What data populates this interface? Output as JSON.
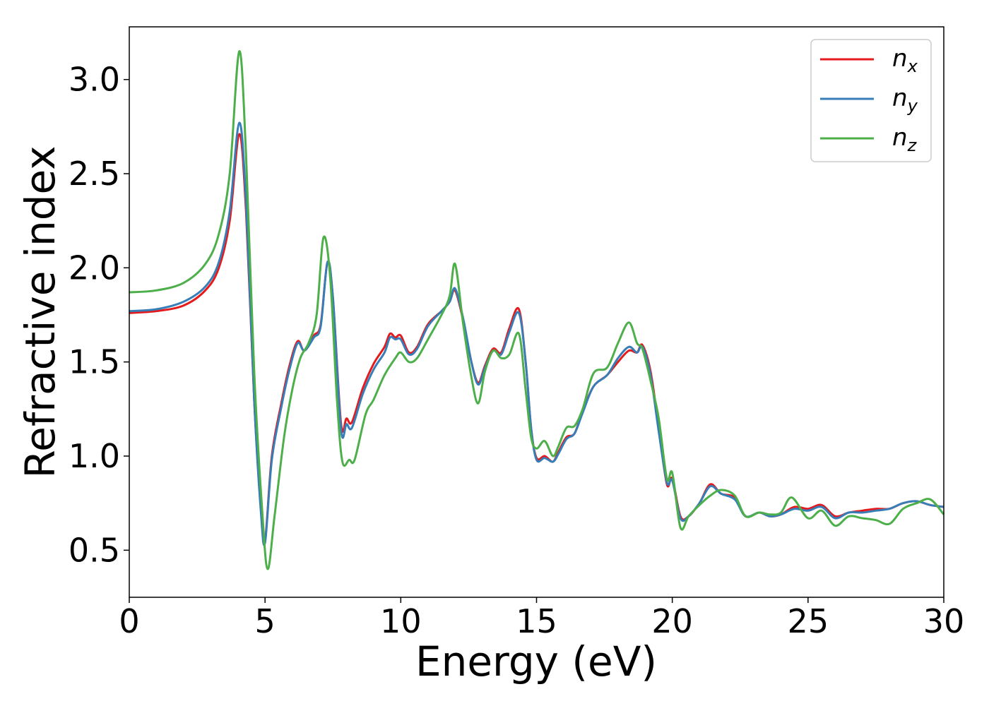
{
  "chart_data": {
    "type": "line",
    "xlabel": "Energy (eV)",
    "ylabel": "Refractive index",
    "xlim": [
      0,
      30
    ],
    "ylim": [
      0.25,
      3.28
    ],
    "xticks": [
      "0",
      "5",
      "10",
      "15",
      "20",
      "25",
      "30"
    ],
    "yticks": [
      "0.5",
      "1.0",
      "1.5",
      "2.0",
      "2.5",
      "3.0"
    ],
    "grid": false,
    "legend_position": "top-right",
    "series": [
      {
        "name": "n",
        "sub": "x",
        "color": "#e41a1c",
        "points": [
          [
            0,
            1.76
          ],
          [
            1,
            1.77
          ],
          [
            2,
            1.8
          ],
          [
            2.8,
            1.88
          ],
          [
            3.3,
            2.0
          ],
          [
            3.7,
            2.25
          ],
          [
            4.05,
            2.71
          ],
          [
            4.3,
            2.3
          ],
          [
            4.6,
            1.3
          ],
          [
            4.85,
            0.72
          ],
          [
            5.0,
            0.55
          ],
          [
            5.25,
            1.0
          ],
          [
            5.6,
            1.28
          ],
          [
            5.9,
            1.48
          ],
          [
            6.2,
            1.61
          ],
          [
            6.45,
            1.56
          ],
          [
            6.8,
            1.64
          ],
          [
            7.05,
            1.7
          ],
          [
            7.3,
            2.03
          ],
          [
            7.5,
            1.84
          ],
          [
            7.8,
            1.17
          ],
          [
            8.0,
            1.2
          ],
          [
            8.2,
            1.18
          ],
          [
            8.6,
            1.36
          ],
          [
            9.0,
            1.49
          ],
          [
            9.4,
            1.58
          ],
          [
            9.6,
            1.65
          ],
          [
            9.8,
            1.63
          ],
          [
            10.0,
            1.64
          ],
          [
            10.3,
            1.55
          ],
          [
            10.6,
            1.58
          ],
          [
            11.0,
            1.7
          ],
          [
            11.5,
            1.77
          ],
          [
            11.8,
            1.82
          ],
          [
            12.0,
            1.88
          ],
          [
            12.3,
            1.72
          ],
          [
            12.6,
            1.5
          ],
          [
            12.85,
            1.39
          ],
          [
            13.1,
            1.48
          ],
          [
            13.4,
            1.57
          ],
          [
            13.7,
            1.55
          ],
          [
            14.0,
            1.68
          ],
          [
            14.35,
            1.78
          ],
          [
            14.6,
            1.5
          ],
          [
            14.8,
            1.15
          ],
          [
            15.0,
            0.99
          ],
          [
            15.3,
            1.0
          ],
          [
            15.6,
            0.97
          ],
          [
            15.8,
            1.02
          ],
          [
            16.1,
            1.1
          ],
          [
            16.4,
            1.12
          ],
          [
            16.7,
            1.24
          ],
          [
            17.1,
            1.37
          ],
          [
            17.6,
            1.43
          ],
          [
            18.0,
            1.5
          ],
          [
            18.4,
            1.56
          ],
          [
            18.7,
            1.55
          ],
          [
            18.9,
            1.59
          ],
          [
            19.2,
            1.45
          ],
          [
            19.5,
            1.15
          ],
          [
            19.8,
            0.85
          ],
          [
            20.0,
            0.88
          ],
          [
            20.3,
            0.68
          ],
          [
            20.6,
            0.68
          ],
          [
            21.0,
            0.75
          ],
          [
            21.4,
            0.85
          ],
          [
            21.8,
            0.8
          ],
          [
            22.3,
            0.78
          ],
          [
            22.7,
            0.68
          ],
          [
            23.2,
            0.7
          ],
          [
            23.6,
            0.68
          ],
          [
            24.0,
            0.69
          ],
          [
            24.5,
            0.73
          ],
          [
            25.0,
            0.72
          ],
          [
            25.5,
            0.74
          ],
          [
            26.0,
            0.68
          ],
          [
            26.5,
            0.7
          ],
          [
            27.0,
            0.71
          ],
          [
            27.5,
            0.72
          ],
          [
            28.0,
            0.72
          ],
          [
            28.5,
            0.75
          ],
          [
            29.0,
            0.76
          ],
          [
            29.5,
            0.74
          ],
          [
            30.0,
            0.73
          ]
        ]
      },
      {
        "name": "n",
        "sub": "y",
        "color": "#377eb8",
        "points": [
          [
            0,
            1.77
          ],
          [
            1,
            1.78
          ],
          [
            2,
            1.82
          ],
          [
            2.8,
            1.9
          ],
          [
            3.3,
            2.03
          ],
          [
            3.7,
            2.3
          ],
          [
            4.05,
            2.77
          ],
          [
            4.3,
            2.35
          ],
          [
            4.6,
            1.3
          ],
          [
            4.85,
            0.7
          ],
          [
            5.0,
            0.54
          ],
          [
            5.25,
            0.98
          ],
          [
            5.6,
            1.26
          ],
          [
            5.9,
            1.46
          ],
          [
            6.2,
            1.6
          ],
          [
            6.45,
            1.56
          ],
          [
            6.8,
            1.63
          ],
          [
            7.05,
            1.69
          ],
          [
            7.3,
            2.03
          ],
          [
            7.5,
            1.84
          ],
          [
            7.8,
            1.14
          ],
          [
            8.0,
            1.17
          ],
          [
            8.2,
            1.15
          ],
          [
            8.6,
            1.33
          ],
          [
            9.0,
            1.46
          ],
          [
            9.4,
            1.55
          ],
          [
            9.6,
            1.63
          ],
          [
            9.8,
            1.62
          ],
          [
            10.0,
            1.62
          ],
          [
            10.3,
            1.54
          ],
          [
            10.6,
            1.57
          ],
          [
            11.0,
            1.69
          ],
          [
            11.5,
            1.77
          ],
          [
            11.8,
            1.82
          ],
          [
            12.0,
            1.89
          ],
          [
            12.3,
            1.73
          ],
          [
            12.6,
            1.5
          ],
          [
            12.85,
            1.38
          ],
          [
            13.1,
            1.47
          ],
          [
            13.4,
            1.56
          ],
          [
            13.7,
            1.54
          ],
          [
            14.0,
            1.66
          ],
          [
            14.35,
            1.76
          ],
          [
            14.6,
            1.5
          ],
          [
            14.8,
            1.15
          ],
          [
            15.0,
            0.98
          ],
          [
            15.3,
            0.99
          ],
          [
            15.6,
            0.97
          ],
          [
            15.8,
            1.01
          ],
          [
            16.1,
            1.09
          ],
          [
            16.4,
            1.12
          ],
          [
            16.7,
            1.23
          ],
          [
            17.1,
            1.37
          ],
          [
            17.6,
            1.43
          ],
          [
            18.0,
            1.52
          ],
          [
            18.4,
            1.58
          ],
          [
            18.7,
            1.55
          ],
          [
            18.9,
            1.58
          ],
          [
            19.2,
            1.43
          ],
          [
            19.5,
            1.13
          ],
          [
            19.8,
            0.86
          ],
          [
            20.0,
            0.87
          ],
          [
            20.3,
            0.67
          ],
          [
            20.6,
            0.68
          ],
          [
            21.0,
            0.75
          ],
          [
            21.4,
            0.84
          ],
          [
            21.8,
            0.8
          ],
          [
            22.3,
            0.77
          ],
          [
            22.7,
            0.68
          ],
          [
            23.2,
            0.7
          ],
          [
            23.6,
            0.68
          ],
          [
            24.0,
            0.69
          ],
          [
            24.5,
            0.72
          ],
          [
            25.0,
            0.71
          ],
          [
            25.5,
            0.73
          ],
          [
            26.0,
            0.67
          ],
          [
            26.5,
            0.7
          ],
          [
            27.0,
            0.7
          ],
          [
            27.5,
            0.71
          ],
          [
            28.0,
            0.72
          ],
          [
            28.5,
            0.75
          ],
          [
            29.0,
            0.76
          ],
          [
            29.5,
            0.74
          ],
          [
            30.0,
            0.73
          ]
        ]
      },
      {
        "name": "n",
        "sub": "z",
        "color": "#4daf4a",
        "points": [
          [
            0,
            1.87
          ],
          [
            1,
            1.88
          ],
          [
            2,
            1.92
          ],
          [
            2.8,
            2.02
          ],
          [
            3.3,
            2.18
          ],
          [
            3.7,
            2.5
          ],
          [
            4.05,
            3.15
          ],
          [
            4.3,
            2.6
          ],
          [
            4.6,
            1.45
          ],
          [
            4.9,
            0.7
          ],
          [
            5.1,
            0.4
          ],
          [
            5.35,
            0.68
          ],
          [
            5.7,
            1.1
          ],
          [
            6.0,
            1.35
          ],
          [
            6.3,
            1.52
          ],
          [
            6.6,
            1.6
          ],
          [
            6.9,
            1.75
          ],
          [
            7.15,
            2.16
          ],
          [
            7.4,
            1.95
          ],
          [
            7.65,
            1.3
          ],
          [
            7.85,
            0.97
          ],
          [
            8.1,
            0.98
          ],
          [
            8.3,
            0.98
          ],
          [
            8.7,
            1.22
          ],
          [
            9.0,
            1.3
          ],
          [
            9.4,
            1.43
          ],
          [
            9.8,
            1.52
          ],
          [
            10.0,
            1.55
          ],
          [
            10.3,
            1.5
          ],
          [
            10.6,
            1.52
          ],
          [
            11.0,
            1.62
          ],
          [
            11.5,
            1.75
          ],
          [
            11.8,
            1.85
          ],
          [
            12.0,
            2.02
          ],
          [
            12.3,
            1.7
          ],
          [
            12.6,
            1.42
          ],
          [
            12.85,
            1.28
          ],
          [
            13.1,
            1.45
          ],
          [
            13.4,
            1.56
          ],
          [
            13.7,
            1.52
          ],
          [
            14.0,
            1.54
          ],
          [
            14.35,
            1.65
          ],
          [
            14.6,
            1.35
          ],
          [
            14.8,
            1.1
          ],
          [
            15.0,
            1.04
          ],
          [
            15.3,
            1.08
          ],
          [
            15.6,
            1.0
          ],
          [
            15.8,
            1.05
          ],
          [
            16.1,
            1.15
          ],
          [
            16.4,
            1.16
          ],
          [
            16.7,
            1.25
          ],
          [
            17.1,
            1.44
          ],
          [
            17.6,
            1.47
          ],
          [
            18.0,
            1.6
          ],
          [
            18.4,
            1.71
          ],
          [
            18.7,
            1.6
          ],
          [
            18.9,
            1.57
          ],
          [
            19.2,
            1.4
          ],
          [
            19.5,
            1.2
          ],
          [
            19.8,
            0.88
          ],
          [
            20.0,
            0.91
          ],
          [
            20.3,
            0.62
          ],
          [
            20.6,
            0.68
          ],
          [
            21.0,
            0.74
          ],
          [
            21.4,
            0.79
          ],
          [
            21.8,
            0.82
          ],
          [
            22.3,
            0.79
          ],
          [
            22.7,
            0.68
          ],
          [
            23.2,
            0.7
          ],
          [
            23.6,
            0.69
          ],
          [
            24.0,
            0.7
          ],
          [
            24.4,
            0.78
          ],
          [
            25.0,
            0.67
          ],
          [
            25.5,
            0.71
          ],
          [
            26.0,
            0.63
          ],
          [
            26.5,
            0.68
          ],
          [
            27.0,
            0.67
          ],
          [
            27.5,
            0.66
          ],
          [
            28.0,
            0.64
          ],
          [
            28.5,
            0.72
          ],
          [
            29.0,
            0.75
          ],
          [
            29.5,
            0.77
          ],
          [
            30.0,
            0.69
          ]
        ]
      }
    ]
  }
}
